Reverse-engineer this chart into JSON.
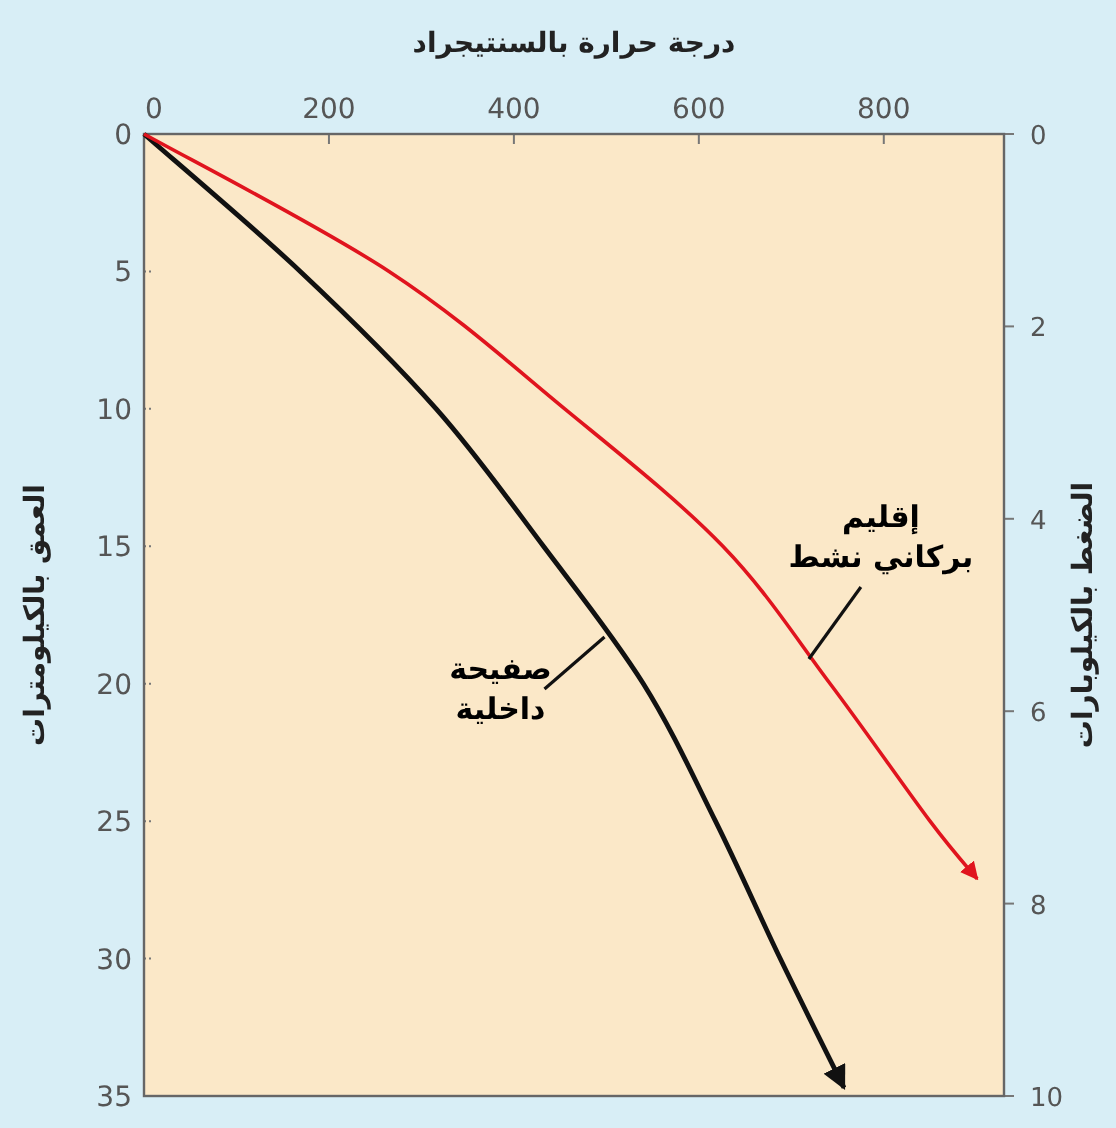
{
  "chart_data": {
    "type": "line",
    "xlabel": "درجة حرارة بالسنتيجراد",
    "ylabel": "العمق بالكيلومترات",
    "y2label": "الضغط بالكيلوبارات",
    "xlim": [
      0,
      930
    ],
    "xticks": [
      0,
      200,
      400,
      600,
      800
    ],
    "ylim": [
      35,
      0
    ],
    "yticks": [
      0,
      5,
      10,
      15,
      20,
      25,
      30,
      35
    ],
    "y2lim": [
      10,
      0
    ],
    "y2ticks": [
      0,
      2,
      4,
      6,
      8,
      10
    ],
    "grid": false,
    "marker": "none",
    "line_style": "solid",
    "series": [
      {
        "color": "#111111",
        "x": [
          0,
          169,
          316,
          432,
          540,
          618,
          688,
          757
        ],
        "values": [
          0,
          5,
          10,
          15,
          20,
          25,
          30,
          34.7
        ]
      },
      {
        "color": "#e0141e",
        "x": [
          0,
          265,
          455,
          626,
          742,
          850,
          901
        ],
        "values": [
          0,
          5,
          10,
          15,
          20,
          25,
          27.1
        ]
      }
    ],
    "annotations": [
      {
        "text": "صفيحة داخلية",
        "x": 498,
        "y": 18.3
      },
      {
        "text": "إقليم بركاني نشط",
        "x": 719,
        "y": 19.1
      }
    ]
  }
}
